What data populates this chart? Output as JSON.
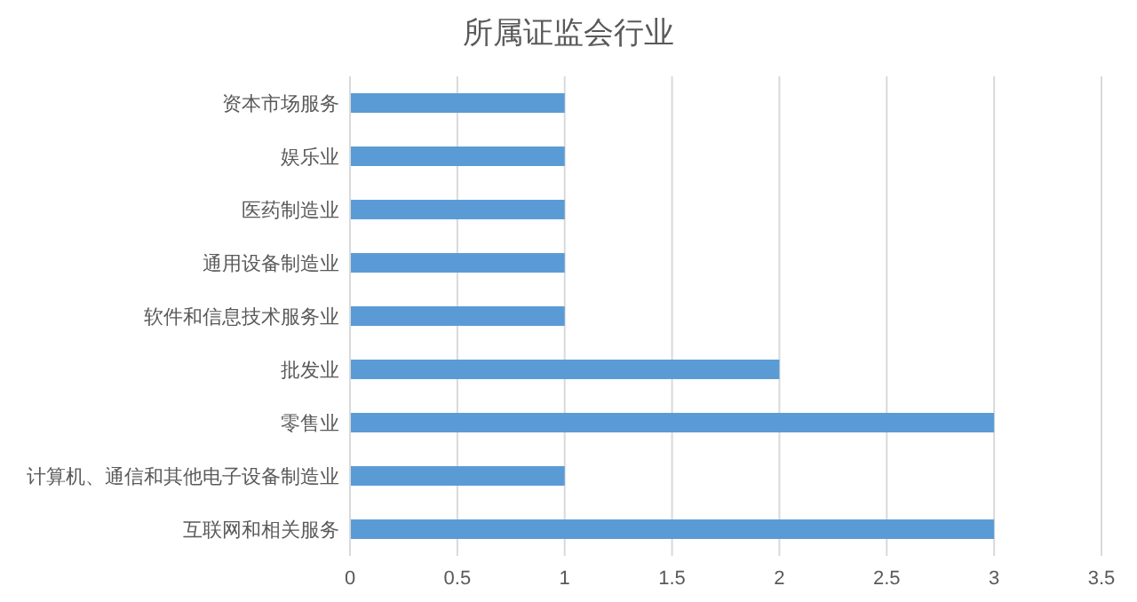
{
  "chart_data": {
    "type": "bar",
    "orientation": "horizontal",
    "title": "所属证监会行业",
    "categories": [
      "资本市场服务",
      "娱乐业",
      "医药制造业",
      "通用设备制造业",
      "软件和信息技术服务业",
      "批发业",
      "零售业",
      "计算机、通信和其他电子设备制造业",
      "互联网和相关服务"
    ],
    "values": [
      1,
      1,
      1,
      1,
      1,
      2,
      3,
      1,
      3
    ],
    "color": "#5b9bd5",
    "xlim": [
      0,
      3.5
    ],
    "xticks": [
      0,
      0.5,
      1,
      1.5,
      2,
      2.5,
      3,
      3.5
    ],
    "grid": "x"
  }
}
